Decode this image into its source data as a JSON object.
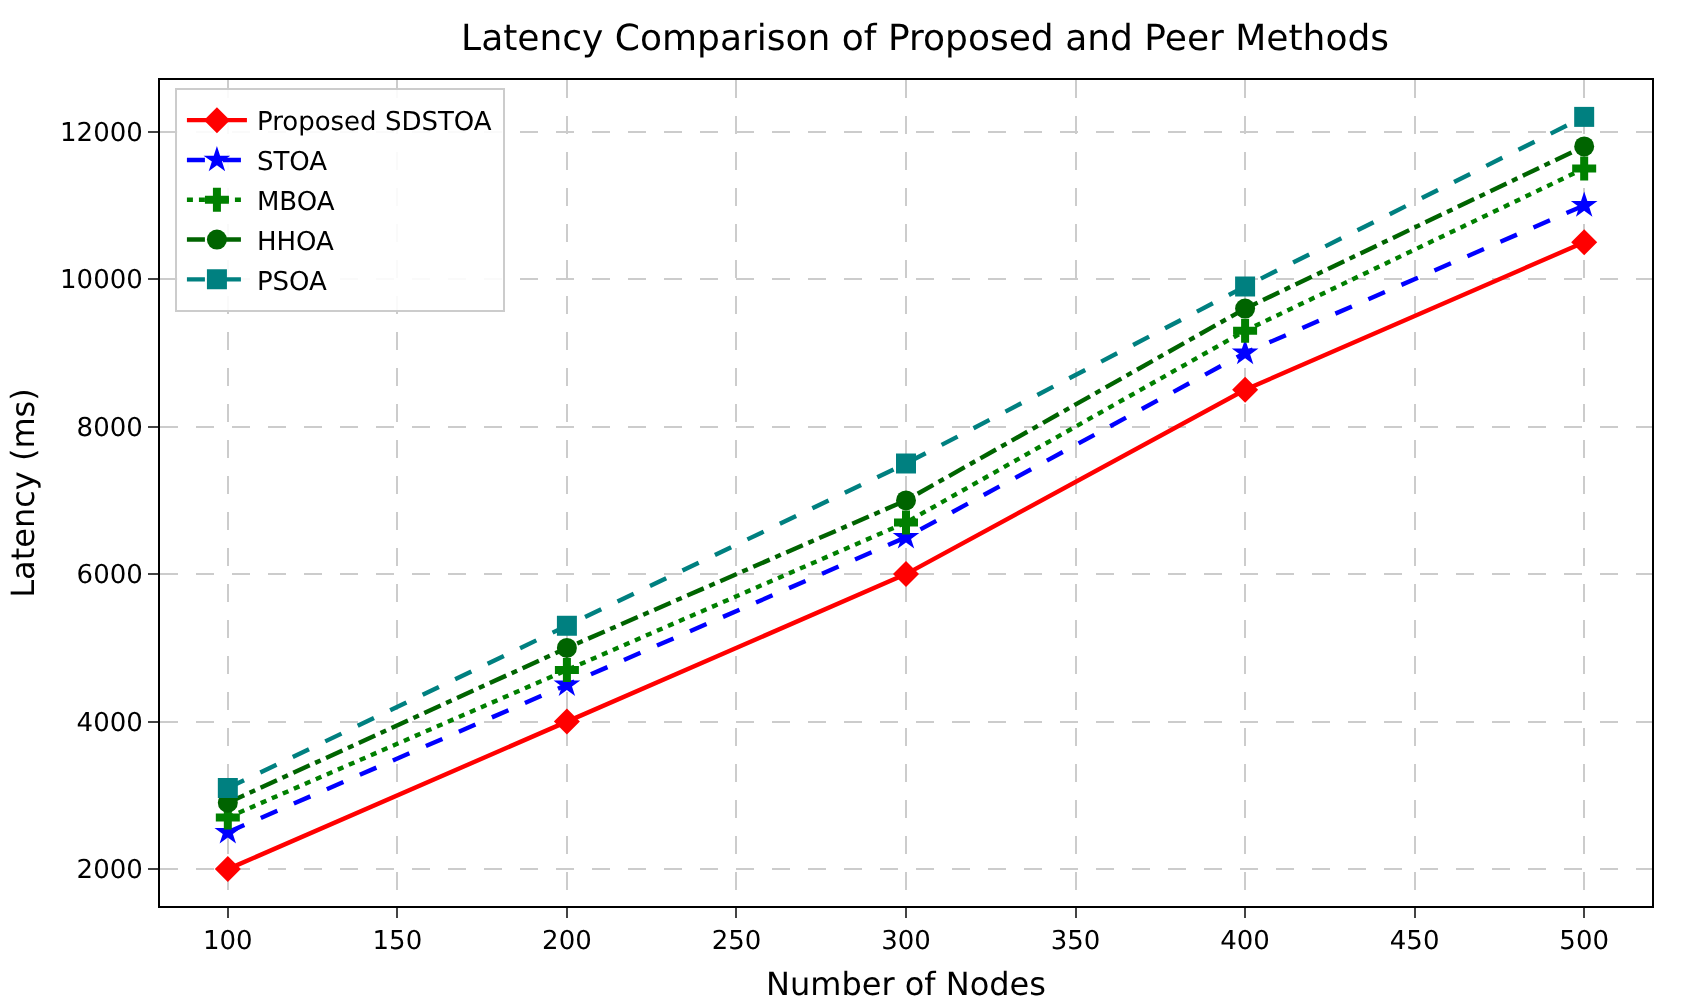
{
  "chart_data": {
    "type": "line",
    "title": "Latency Comparison of Proposed and Peer Methods",
    "xlabel": "Number of Nodes",
    "ylabel": "Latency (ms)",
    "x": [
      100,
      200,
      300,
      400,
      500
    ],
    "series": [
      {
        "name": "Proposed SDSTOA",
        "color": "#ff0000",
        "marker": "diamond",
        "line_style": "solid",
        "values": [
          2000,
          4000,
          6000,
          8500,
          10500
        ]
      },
      {
        "name": "STOA",
        "color": "#0000ff",
        "marker": "star",
        "line_style": "dashed",
        "values": [
          2500,
          4500,
          6500,
          9000,
          11000
        ]
      },
      {
        "name": "MBOA",
        "color": "#008000",
        "marker": "cross",
        "line_style": "dotted",
        "values": [
          2700,
          4700,
          6700,
          9300,
          11500
        ]
      },
      {
        "name": "HHOA",
        "color": "#006400",
        "marker": "circle",
        "line_style": "dashdot",
        "values": [
          2900,
          5000,
          7000,
          9600,
          11800
        ]
      },
      {
        "name": "PSOA",
        "color": "#008080",
        "marker": "square",
        "line_style": "dashed",
        "values": [
          3100,
          5300,
          7500,
          9900,
          12200
        ]
      }
    ],
    "xlim": [
      80,
      520
    ],
    "xticks": [
      100,
      150,
      200,
      250,
      300,
      350,
      400,
      450,
      500
    ],
    "ylim": [
      1500,
      12700
    ],
    "yticks": [
      2000,
      4000,
      6000,
      8000,
      10000,
      12000
    ],
    "grid": true,
    "legend": "top left"
  }
}
